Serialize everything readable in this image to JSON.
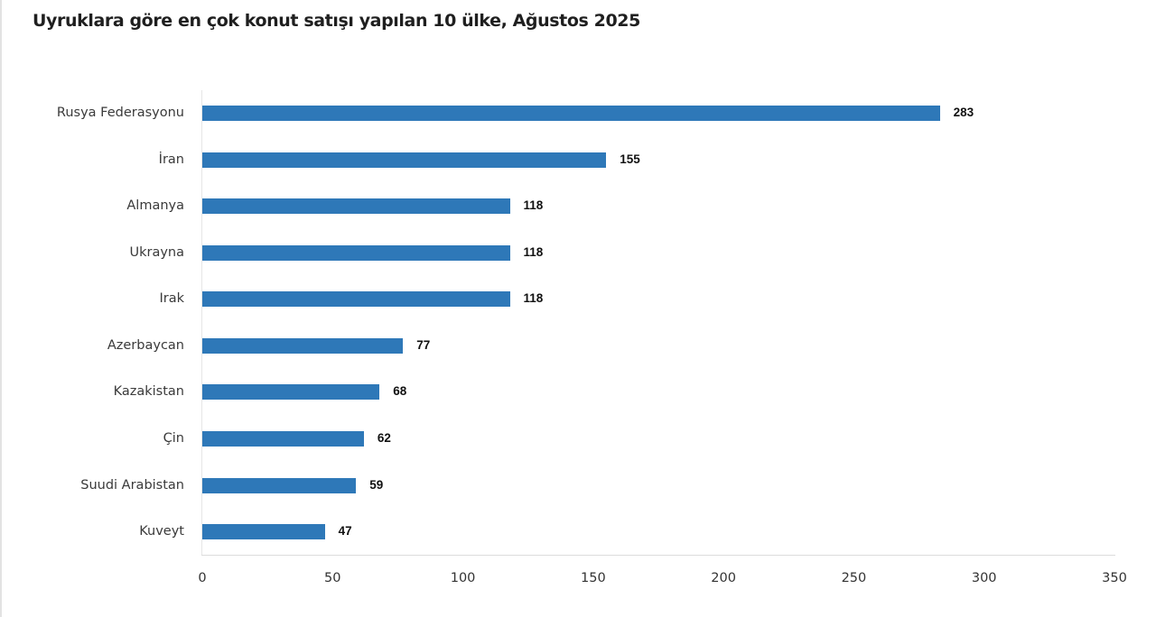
{
  "title": "Uyruklara göre en çok konut satışı yapılan 10 ülke, Ağustos 2025",
  "colors": {
    "bar": "#2e78b8",
    "background": "#ffffff"
  },
  "chart_data": {
    "type": "bar",
    "orientation": "horizontal",
    "title": "Uyruklara göre en çok konut satışı yapılan 10 ülke, Ağustos 2025",
    "xlabel": "",
    "ylabel": "",
    "categories": [
      "Rusya Federasyonu",
      "İran",
      "Almanya",
      "Ukrayna",
      "Irak",
      "Azerbaycan",
      "Kazakistan",
      "Çin",
      "Suudi Arabistan",
      "Kuveyt"
    ],
    "values": [
      283,
      155,
      118,
      118,
      118,
      77,
      68,
      62,
      59,
      47
    ],
    "xlim": [
      0,
      350
    ],
    "xticks": [
      "0",
      "50",
      "100",
      "150",
      "200",
      "250",
      "300",
      "350"
    ],
    "grid": false,
    "legend": null,
    "data_labels": true
  }
}
